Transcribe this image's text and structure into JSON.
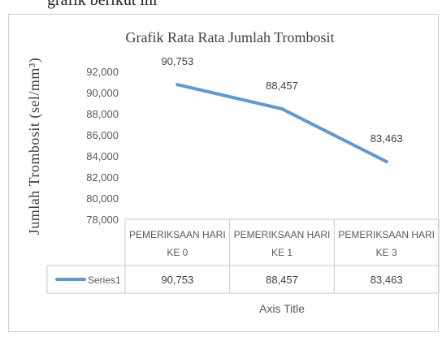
{
  "page": {
    "top_cut_text": "grafik berikut ini"
  },
  "chart_data": {
    "type": "line",
    "title": "Grafik Rata Rata Jumlah Trombosit",
    "ylabel": "Jumlah Trombosit (sel/mm³)",
    "xlabel": "Axis Title",
    "categories": [
      "PEMERIKSAAN HARI KE 0",
      "PEMERIKSAAN HARI KE 1",
      "PEMERIKSAAN HARI KE 3"
    ],
    "category_lines": [
      [
        "PEMERIKSAAN HARI",
        "KE 0"
      ],
      [
        "PEMERIKSAAN HARI",
        "KE 1"
      ],
      [
        "PEMERIKSAAN HARI",
        "KE 3"
      ]
    ],
    "series": [
      {
        "name": "Series1",
        "values": [
          90753,
          88457,
          83463
        ],
        "labels": [
          "90,753",
          "88,457",
          "83,463"
        ],
        "color": "#5b9bd5"
      }
    ],
    "y_ticks": [
      78000,
      80000,
      82000,
      84000,
      86000,
      88000,
      90000,
      92000
    ],
    "y_tick_labels": [
      "78,000",
      "80,000",
      "82,000",
      "84,000",
      "86,000",
      "88,000",
      "90,000",
      "92,000"
    ],
    "ylim": [
      78000,
      92000
    ],
    "grid": false,
    "data_table": true,
    "legend": "data-table"
  }
}
